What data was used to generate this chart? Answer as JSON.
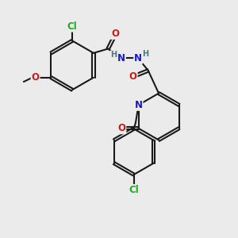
{
  "bg_color": "#ebebeb",
  "bond_color": "#1a1a1a",
  "bond_width": 1.5,
  "atom_colors": {
    "C": "#1a1a1a",
    "N": "#1a1acc",
    "O": "#cc1a1a",
    "Cl": "#22aa22",
    "H": "#4a7a7a"
  },
  "font_size_atom": 8.5,
  "font_size_small": 7.0,
  "dbo": 0.055
}
